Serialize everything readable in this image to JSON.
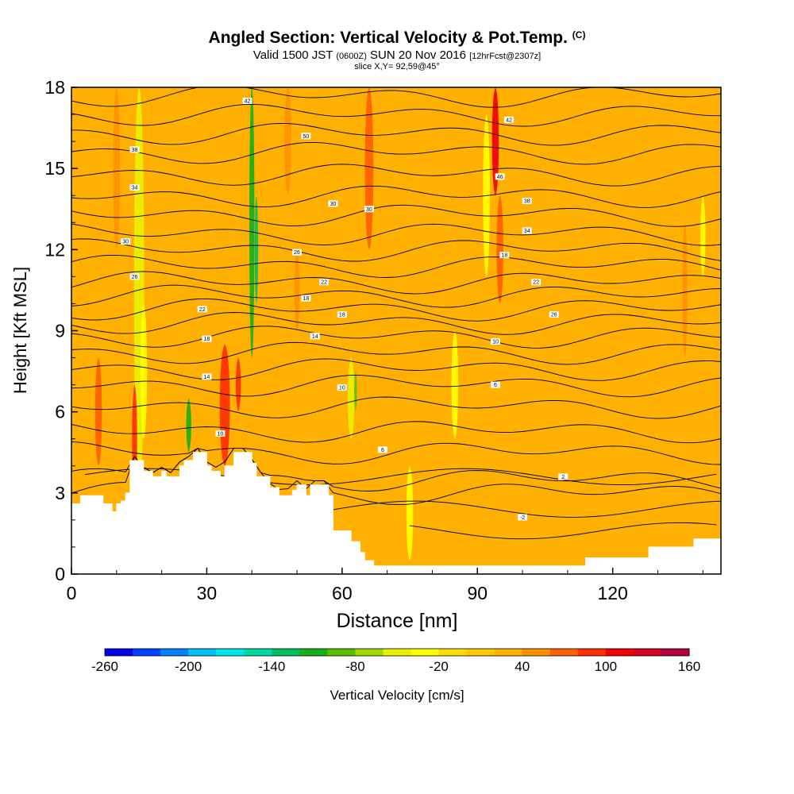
{
  "title": {
    "main": "Angled Section: Vertical Velocity & Pot.Temp.",
    "units": "(C)",
    "valid_prefix": "Valid 1500 JST",
    "valid_utc": "(0600Z)",
    "valid_date": "SUN 20 Nov 2016",
    "forecast": "[12hrFcst@2307z]",
    "slice": "slice X,Y= 92,59@45°"
  },
  "chart_data": {
    "type": "heatmap",
    "xlabel": "Distance [nm]",
    "ylabel": "Height [Kft MSL]",
    "xlim": [
      0,
      144
    ],
    "ylim": [
      0,
      18
    ],
    "x_ticks": [
      0,
      30,
      60,
      90,
      120
    ],
    "y_ticks": [
      0,
      3,
      6,
      9,
      12,
      15,
      18
    ],
    "colorbar": {
      "label": "Vertical Velocity [cm/s]",
      "min": -260,
      "max": 160,
      "step": 20,
      "tick_values": [
        -260,
        -200,
        -140,
        -80,
        -20,
        40,
        100,
        160
      ],
      "colors": [
        "#0000e6",
        "#0040ff",
        "#0080ff",
        "#00c0ff",
        "#00e6e6",
        "#00d8a0",
        "#00c060",
        "#18b018",
        "#58c000",
        "#a0d800",
        "#e8f000",
        "#ffff00",
        "#ffdd00",
        "#ffc800",
        "#ffb000",
        "#ff9000",
        "#ff6000",
        "#ff3000",
        "#f00000",
        "#d00020",
        "#b00040",
        "#900060",
        "#700080",
        "#500090",
        "#400080"
      ]
    },
    "background_level": 20,
    "velocity_features": [
      {
        "x": 15,
        "z": [
          3,
          18
        ],
        "value": -50,
        "width": 3
      },
      {
        "x": 16,
        "z": [
          5,
          10
        ],
        "value": -30,
        "width": 2
      },
      {
        "x": 40,
        "z": [
          8,
          18
        ],
        "value": -110,
        "width": 1.5
      },
      {
        "x": 41,
        "z": [
          10,
          14
        ],
        "value": -130,
        "width": 1
      },
      {
        "x": 26,
        "z": [
          4.5,
          6.5
        ],
        "value": -110,
        "width": 1.5
      },
      {
        "x": 62,
        "z": [
          5,
          8
        ],
        "value": -60,
        "width": 2
      },
      {
        "x": 63,
        "z": [
          6,
          7.5
        ],
        "value": -90,
        "width": 0.8
      },
      {
        "x": 92,
        "z": [
          11,
          17
        ],
        "value": -40,
        "width": 2
      },
      {
        "x": 85,
        "z": [
          5,
          9
        ],
        "value": -30,
        "width": 2
      },
      {
        "x": 75,
        "z": [
          0.5,
          4
        ],
        "value": -30,
        "width": 2
      },
      {
        "x": 140,
        "z": [
          11,
          14
        ],
        "value": -30,
        "width": 1.5
      },
      {
        "x": 6,
        "z": [
          4,
          8
        ],
        "value": 60,
        "width": 2
      },
      {
        "x": 14,
        "z": [
          3,
          7
        ],
        "value": 80,
        "width": 1.5
      },
      {
        "x": 34,
        "z": [
          4,
          8.5
        ],
        "value": 80,
        "width": 3
      },
      {
        "x": 37,
        "z": [
          6,
          8
        ],
        "value": 95,
        "width": 1.5
      },
      {
        "x": 66,
        "z": [
          12,
          18
        ],
        "value": 70,
        "width": 2.5
      },
      {
        "x": 94,
        "z": [
          14,
          18
        ],
        "value": 100,
        "width": 2
      },
      {
        "x": 95,
        "z": [
          10,
          14
        ],
        "value": 60,
        "width": 2
      },
      {
        "x": 48,
        "z": [
          14,
          18
        ],
        "value": 50,
        "width": 2
      },
      {
        "x": 10,
        "z": [
          12,
          18
        ],
        "value": 50,
        "width": 2
      },
      {
        "x": 136,
        "z": [
          8,
          13
        ],
        "value": 50,
        "width": 1.5
      },
      {
        "x": 50,
        "z": [
          9,
          12
        ],
        "value": 50,
        "width": 1.5
      }
    ],
    "contour_baselines": [
      3.0,
      3.5,
      4.5,
      5.3,
      6.2,
      7.0,
      7.6,
      8.2,
      8.8,
      9.3,
      9.8,
      10.3,
      10.8,
      11.4,
      12.0,
      12.6,
      13.3,
      14.0,
      14.8,
      15.6,
      16.3,
      17.0,
      17.7
    ],
    "contour_labels": [
      {
        "x": 39,
        "z": 17.5,
        "text": "42"
      },
      {
        "x": 52,
        "z": 16.2,
        "text": "50"
      },
      {
        "x": 14,
        "z": 15.7,
        "text": "38"
      },
      {
        "x": 14,
        "z": 14.3,
        "text": "34"
      },
      {
        "x": 58,
        "z": 13.7,
        "text": "30"
      },
      {
        "x": 66,
        "z": 13.5,
        "text": "30"
      },
      {
        "x": 12,
        "z": 12.3,
        "text": "30"
      },
      {
        "x": 50,
        "z": 11.9,
        "text": "26"
      },
      {
        "x": 14,
        "z": 11.0,
        "text": "26"
      },
      {
        "x": 56,
        "z": 10.8,
        "text": "22"
      },
      {
        "x": 29,
        "z": 9.8,
        "text": "22"
      },
      {
        "x": 52,
        "z": 10.2,
        "text": "18"
      },
      {
        "x": 30,
        "z": 8.7,
        "text": "18"
      },
      {
        "x": 60,
        "z": 9.6,
        "text": "18"
      },
      {
        "x": 54,
        "z": 8.8,
        "text": "14"
      },
      {
        "x": 30,
        "z": 7.3,
        "text": "14"
      },
      {
        "x": 60,
        "z": 6.9,
        "text": "10"
      },
      {
        "x": 33,
        "z": 5.2,
        "text": "10"
      },
      {
        "x": 69,
        "z": 4.6,
        "text": "6"
      },
      {
        "x": 94,
        "z": 7.0,
        "text": "6"
      },
      {
        "x": 94,
        "z": 8.6,
        "text": "10"
      },
      {
        "x": 96,
        "z": 11.8,
        "text": "18"
      },
      {
        "x": 103,
        "z": 10.8,
        "text": "22"
      },
      {
        "x": 107,
        "z": 9.6,
        "text": "26"
      },
      {
        "x": 97,
        "z": 16.8,
        "text": "42"
      },
      {
        "x": 95,
        "z": 14.7,
        "text": "46"
      },
      {
        "x": 101,
        "z": 13.8,
        "text": "38"
      },
      {
        "x": 101,
        "z": 12.7,
        "text": "34"
      },
      {
        "x": 109,
        "z": 3.6,
        "text": "2"
      },
      {
        "x": 100,
        "z": 2.1,
        "text": "-2"
      }
    ],
    "low_contours": [
      {
        "z": 3.6,
        "x": [
          3,
          144
        ]
      },
      {
        "z": 2.4,
        "x": [
          52,
          144
        ]
      },
      {
        "z": 1.6,
        "x": [
          75,
          144
        ]
      }
    ],
    "terrain": [
      [
        0,
        2.6
      ],
      [
        2,
        2.6
      ],
      [
        2,
        2.9
      ],
      [
        7,
        2.9
      ],
      [
        7,
        2.6
      ],
      [
        9,
        2.6
      ],
      [
        9,
        2.3
      ],
      [
        10,
        2.3
      ],
      [
        10,
        2.6
      ],
      [
        11,
        2.6
      ],
      [
        11,
        2.7
      ],
      [
        12,
        2.7
      ],
      [
        12,
        3.0
      ],
      [
        13,
        3.0
      ],
      [
        13,
        4.2
      ],
      [
        16,
        4.2
      ],
      [
        16,
        3.8
      ],
      [
        18,
        3.8
      ],
      [
        18,
        3.6
      ],
      [
        20,
        3.6
      ],
      [
        20,
        3.8
      ],
      [
        21,
        3.8
      ],
      [
        21,
        3.6
      ],
      [
        24,
        3.6
      ],
      [
        24,
        4.0
      ],
      [
        25,
        4.0
      ],
      [
        25,
        4.2
      ],
      [
        27,
        4.2
      ],
      [
        27,
        4.5
      ],
      [
        30,
        4.5
      ],
      [
        30,
        4.0
      ],
      [
        31,
        4.0
      ],
      [
        31,
        3.8
      ],
      [
        33,
        3.8
      ],
      [
        33,
        3.6
      ],
      [
        34,
        3.6
      ],
      [
        34,
        4.0
      ],
      [
        36,
        4.0
      ],
      [
        36,
        4.5
      ],
      [
        40,
        4.5
      ],
      [
        40,
        4.1
      ],
      [
        41,
        4.1
      ],
      [
        41,
        3.6
      ],
      [
        44,
        3.6
      ],
      [
        44,
        3.2
      ],
      [
        46,
        3.2
      ],
      [
        46,
        2.9
      ],
      [
        49,
        2.9
      ],
      [
        49,
        3.1
      ],
      [
        50,
        3.1
      ],
      [
        50,
        3.3
      ],
      [
        52,
        3.3
      ],
      [
        52,
        2.9
      ],
      [
        53,
        2.9
      ],
      [
        53,
        3.3
      ],
      [
        57,
        3.3
      ],
      [
        57,
        2.9
      ],
      [
        58,
        2.9
      ],
      [
        58,
        1.6
      ],
      [
        62,
        1.6
      ],
      [
        62,
        1.2
      ],
      [
        64,
        1.2
      ],
      [
        64,
        0.8
      ],
      [
        65,
        0.8
      ],
      [
        65,
        0.5
      ],
      [
        67,
        0.5
      ],
      [
        67,
        0.3
      ],
      [
        114,
        0.3
      ],
      [
        114,
        0.6
      ],
      [
        128,
        0.6
      ],
      [
        128,
        1.0
      ],
      [
        138,
        1.0
      ],
      [
        138,
        1.3
      ],
      [
        144,
        1.3
      ]
    ]
  }
}
